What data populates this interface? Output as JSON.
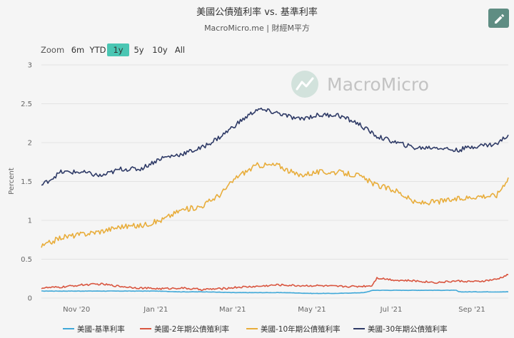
{
  "header": {
    "title": "美國公債殖利率 vs. 基準利率",
    "subtitle": "MacroMicro.me | 財經M平方"
  },
  "watermark": {
    "text": "MacroMicro"
  },
  "zoom": {
    "label": "Zoom",
    "options": [
      "6m",
      "YTD",
      "1y",
      "5y",
      "10y",
      "All"
    ],
    "selected": "1y"
  },
  "edit_button": {
    "icon": "pencil-icon"
  },
  "chart_data": {
    "type": "line",
    "ylabel": "Percent",
    "xlabel": "",
    "ylim": [
      0,
      3
    ],
    "yticks": [
      0,
      0.5,
      1,
      1.5,
      2,
      2.5,
      3
    ],
    "ytick_labels": [
      "0",
      "0.5",
      "1",
      "1.5",
      "2",
      "2.5",
      "3"
    ],
    "x_range": [
      "2020-10-05",
      "2021-09-29"
    ],
    "xticks": [
      "2020-11-01",
      "2021-01-01",
      "2021-03-01",
      "2021-05-01",
      "2021-07-01",
      "2021-09-01"
    ],
    "xtick_labels": [
      "Nov '20",
      "Jan '21",
      "Mar '21",
      "May '21",
      "Jul '21",
      "Sep '21"
    ],
    "grid": true,
    "legend_position": "bottom",
    "series": [
      {
        "name": "美國-基準利率",
        "color": "#3fa8d8",
        "x": [
          "2020-10-05",
          "2020-11-01",
          "2020-12-01",
          "2021-01-01",
          "2021-01-20",
          "2021-02-10",
          "2021-03-01",
          "2021-03-20",
          "2021-04-10",
          "2021-05-01",
          "2021-05-20",
          "2021-06-10",
          "2021-06-17",
          "2021-07-01",
          "2021-08-01",
          "2021-08-20",
          "2021-08-22",
          "2021-09-01",
          "2021-09-15",
          "2021-09-29"
        ],
        "y": [
          0.09,
          0.09,
          0.09,
          0.09,
          0.08,
          0.08,
          0.07,
          0.07,
          0.07,
          0.06,
          0.06,
          0.07,
          0.1,
          0.1,
          0.1,
          0.1,
          0.08,
          0.08,
          0.08,
          0.08
        ]
      },
      {
        "name": "美國-2年期公債殖利率",
        "color": "#d9553f",
        "x": [
          "2020-10-05",
          "2020-10-20",
          "2020-11-05",
          "2020-11-20",
          "2020-12-05",
          "2020-12-20",
          "2021-01-05",
          "2021-01-20",
          "2021-02-05",
          "2021-02-20",
          "2021-03-05",
          "2021-03-20",
          "2021-04-05",
          "2021-04-20",
          "2021-05-05",
          "2021-05-20",
          "2021-06-05",
          "2021-06-16",
          "2021-06-20",
          "2021-07-05",
          "2021-07-20",
          "2021-08-05",
          "2021-08-20",
          "2021-09-05",
          "2021-09-20",
          "2021-09-29"
        ],
        "y": [
          0.13,
          0.14,
          0.17,
          0.18,
          0.15,
          0.13,
          0.12,
          0.13,
          0.11,
          0.12,
          0.14,
          0.15,
          0.17,
          0.16,
          0.16,
          0.15,
          0.15,
          0.16,
          0.26,
          0.23,
          0.22,
          0.2,
          0.22,
          0.21,
          0.24,
          0.3
        ]
      },
      {
        "name": "美國-10年期公債殖利率",
        "color": "#e8ad3b",
        "x": [
          "2020-10-05",
          "2020-10-20",
          "2020-11-05",
          "2020-11-20",
          "2020-12-05",
          "2020-12-20",
          "2021-01-05",
          "2021-01-20",
          "2021-02-05",
          "2021-02-20",
          "2021-03-05",
          "2021-03-20",
          "2021-04-05",
          "2021-04-20",
          "2021-05-05",
          "2021-05-20",
          "2021-06-05",
          "2021-06-20",
          "2021-07-05",
          "2021-07-20",
          "2021-08-05",
          "2021-08-20",
          "2021-09-05",
          "2021-09-20",
          "2021-09-29"
        ],
        "y": [
          0.66,
          0.78,
          0.82,
          0.86,
          0.92,
          0.93,
          1.0,
          1.13,
          1.18,
          1.34,
          1.57,
          1.71,
          1.71,
          1.58,
          1.62,
          1.62,
          1.58,
          1.45,
          1.38,
          1.22,
          1.24,
          1.27,
          1.31,
          1.32,
          1.55
        ]
      },
      {
        "name": "美國-30年期公債殖利率",
        "color": "#2e3a66",
        "x": [
          "2020-10-05",
          "2020-10-20",
          "2020-11-05",
          "2020-11-20",
          "2020-12-05",
          "2020-12-20",
          "2021-01-05",
          "2021-01-20",
          "2021-02-05",
          "2021-02-20",
          "2021-03-05",
          "2021-03-20",
          "2021-04-05",
          "2021-04-20",
          "2021-05-05",
          "2021-05-20",
          "2021-06-05",
          "2021-06-20",
          "2021-07-05",
          "2021-07-20",
          "2021-08-05",
          "2021-08-20",
          "2021-09-05",
          "2021-09-20",
          "2021-09-29"
        ],
        "y": [
          1.45,
          1.62,
          1.62,
          1.57,
          1.66,
          1.66,
          1.8,
          1.85,
          1.93,
          2.08,
          2.25,
          2.43,
          2.38,
          2.3,
          2.35,
          2.36,
          2.25,
          2.08,
          2.0,
          1.93,
          1.94,
          1.9,
          1.96,
          1.98,
          2.1
        ]
      }
    ]
  }
}
